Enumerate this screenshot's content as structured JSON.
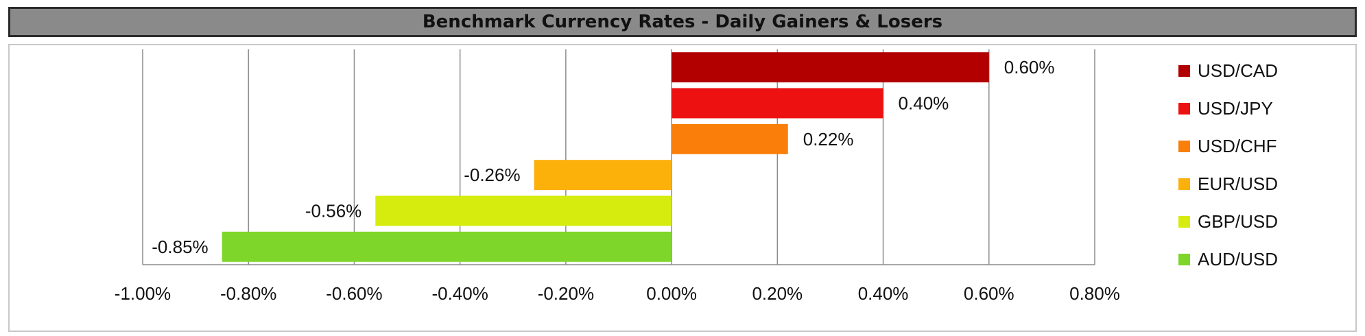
{
  "chart_data": {
    "type": "bar",
    "orientation": "horizontal",
    "title": "Benchmark Currency Rates - Daily Gainers & Losers",
    "xlabel": "",
    "ylabel": "",
    "xlim": [
      -1.0,
      0.8
    ],
    "x_ticks": [
      -1.0,
      -0.8,
      -0.6,
      -0.4,
      -0.2,
      0.0,
      0.2,
      0.4,
      0.6,
      0.8
    ],
    "x_tick_labels": [
      "-1.00%",
      "-0.80%",
      "-0.60%",
      "-0.40%",
      "-0.20%",
      "0.00%",
      "0.20%",
      "0.40%",
      "0.60%",
      "0.80%"
    ],
    "grid": "vertical",
    "legend": "right",
    "series": [
      {
        "name": "USD/CAD",
        "value": 0.6,
        "label": "0.60%",
        "color": "#b20000"
      },
      {
        "name": "USD/JPY",
        "value": 0.4,
        "label": "0.40%",
        "color": "#ee1111"
      },
      {
        "name": "USD/CHF",
        "value": 0.22,
        "label": "0.22%",
        "color": "#f97f0a"
      },
      {
        "name": "EUR/USD",
        "value": -0.26,
        "label": "-0.26%",
        "color": "#fbb00a"
      },
      {
        "name": "GBP/USD",
        "value": -0.56,
        "label": "-0.56%",
        "color": "#d6ec0e"
      },
      {
        "name": "AUD/USD",
        "value": -0.85,
        "label": "-0.85%",
        "color": "#7fd62a"
      }
    ]
  }
}
